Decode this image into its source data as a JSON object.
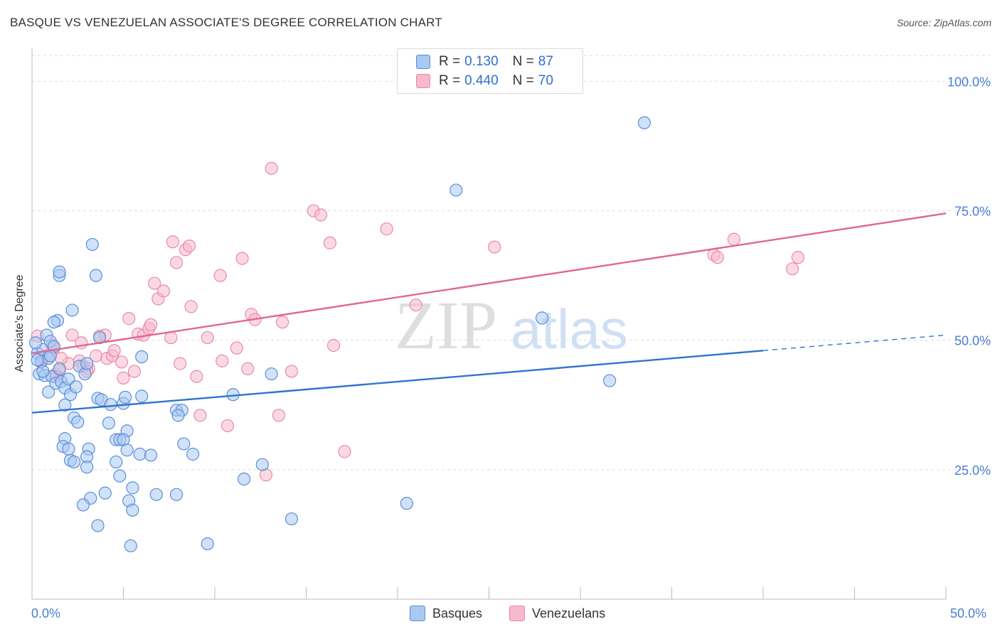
{
  "title": "BASQUE VS VENEZUELAN ASSOCIATE'S DEGREE CORRELATION CHART",
  "source": "Source: ZipAtlas.com",
  "watermark": {
    "zip": "ZIP",
    "atlas": "atlas"
  },
  "colors": {
    "basque_fill": "#a9c8f2",
    "basque_stroke": "#5b8fd8",
    "basque_line": "#2f74d0",
    "venez_fill": "#f7b9cc",
    "venez_stroke": "#e98aa7",
    "venez_line": "#e0678e",
    "tick_text": "#4a7fd4",
    "grid": "#dddddd"
  },
  "legend": {
    "rows": [
      {
        "r_label": "R =",
        "r_value": "0.130",
        "n_label": "N =",
        "n_value": "87"
      },
      {
        "r_label": "R =",
        "r_value": "0.440",
        "n_label": "N =",
        "n_value": "70"
      }
    ]
  },
  "bottom_legend": {
    "basques": "Basques",
    "venezuelans": "Venezuelans"
  },
  "chart_data": {
    "type": "scatter",
    "title": "BASQUE VS VENEZUELAN ASSOCIATE'S DEGREE CORRELATION CHART",
    "xlabel": "",
    "ylabel": "Associate's Degree",
    "xlim": [
      0,
      50
    ],
    "ylim": [
      0,
      105
    ],
    "x_tick_labels": [
      "0.0%",
      "50.0%"
    ],
    "y_ticks": [
      25,
      50,
      75,
      100
    ],
    "y_tick_labels": [
      "25.0%",
      "50.0%",
      "75.0%",
      "100.0%"
    ],
    "grid": true,
    "series": [
      {
        "name": "Basques",
        "r": 0.13,
        "n": 87,
        "trend": {
          "x": [
            0,
            40
          ],
          "y": [
            36.0,
            48.0
          ],
          "dashed_to": [
            50,
            51.0
          ]
        },
        "points": [
          [
            0.3,
            47.5
          ],
          [
            0.5,
            45.8
          ],
          [
            0.6,
            48.2
          ],
          [
            0.2,
            49.5
          ],
          [
            0.8,
            51.0
          ],
          [
            1.0,
            49.8
          ],
          [
            0.9,
            46.5
          ],
          [
            1.2,
            48.8
          ],
          [
            0.4,
            43.5
          ],
          [
            0.7,
            43.2
          ],
          [
            1.1,
            43.0
          ],
          [
            1.3,
            41.7
          ],
          [
            1.5,
            44.5
          ],
          [
            1.4,
            53.8
          ],
          [
            1.2,
            53.5
          ],
          [
            1.6,
            42.0
          ],
          [
            1.8,
            40.8
          ],
          [
            2.0,
            42.5
          ],
          [
            2.1,
            39.5
          ],
          [
            2.4,
            41.0
          ],
          [
            0.9,
            40.0
          ],
          [
            1.8,
            37.5
          ],
          [
            2.3,
            35.0
          ],
          [
            2.5,
            34.2
          ],
          [
            2.6,
            45.0
          ],
          [
            2.9,
            43.5
          ],
          [
            3.6,
            38.8
          ],
          [
            3.8,
            38.5
          ],
          [
            3.7,
            50.5
          ],
          [
            4.3,
            37.6
          ],
          [
            5.0,
            37.8
          ],
          [
            5.1,
            39.0
          ],
          [
            4.2,
            34.0
          ],
          [
            5.2,
            32.5
          ],
          [
            1.8,
            31.0
          ],
          [
            1.7,
            29.5
          ],
          [
            3.1,
            29.0
          ],
          [
            3.0,
            27.5
          ],
          [
            2.1,
            26.8
          ],
          [
            2.3,
            26.5
          ],
          [
            3.0,
            25.5
          ],
          [
            3.5,
            62.5
          ],
          [
            1.5,
            62.5
          ],
          [
            1.5,
            63.2
          ],
          [
            2.2,
            55.8
          ],
          [
            3.3,
            68.5
          ],
          [
            4.6,
            30.8
          ],
          [
            4.8,
            30.8
          ],
          [
            5.0,
            30.8
          ],
          [
            5.2,
            28.8
          ],
          [
            5.9,
            28.0
          ],
          [
            6.5,
            27.8
          ],
          [
            4.6,
            26.5
          ],
          [
            4.8,
            23.8
          ],
          [
            5.5,
            21.5
          ],
          [
            6.8,
            20.2
          ],
          [
            7.9,
            20.2
          ],
          [
            4.0,
            20.5
          ],
          [
            3.2,
            19.5
          ],
          [
            2.8,
            18.2
          ],
          [
            5.3,
            19.0
          ],
          [
            5.5,
            17.2
          ],
          [
            3.6,
            14.2
          ],
          [
            5.4,
            10.3
          ],
          [
            6.0,
            46.8
          ],
          [
            7.9,
            36.5
          ],
          [
            8.2,
            36.5
          ],
          [
            8.0,
            35.5
          ],
          [
            8.3,
            30.0
          ],
          [
            8.8,
            28.0
          ],
          [
            11.0,
            39.5
          ],
          [
            11.6,
            23.2
          ],
          [
            12.6,
            26.0
          ],
          [
            13.1,
            43.5
          ],
          [
            14.2,
            15.5
          ],
          [
            9.6,
            10.7
          ],
          [
            20.5,
            18.5
          ],
          [
            23.2,
            79.0
          ],
          [
            27.9,
            54.3
          ],
          [
            31.6,
            42.2
          ],
          [
            33.5,
            92.0
          ],
          [
            0.3,
            46.2
          ],
          [
            0.6,
            44.0
          ],
          [
            2.0,
            29.0
          ],
          [
            6.0,
            39.2
          ],
          [
            3.0,
            45.5
          ],
          [
            1.0,
            47.0
          ]
        ]
      },
      {
        "name": "Venezuelans",
        "r": 0.44,
        "n": 70,
        "trend": {
          "x": [
            0,
            50
          ],
          "y": [
            47.5,
            74.5
          ]
        },
        "points": [
          [
            0.3,
            50.8
          ],
          [
            0.6,
            46.5
          ],
          [
            0.8,
            47.0
          ],
          [
            1.1,
            49.0
          ],
          [
            1.2,
            48.5
          ],
          [
            1.3,
            43.5
          ],
          [
            1.5,
            44.2
          ],
          [
            2.0,
            45.5
          ],
          [
            2.2,
            51.0
          ],
          [
            2.6,
            46.0
          ],
          [
            2.7,
            49.5
          ],
          [
            2.8,
            45.0
          ],
          [
            3.1,
            44.5
          ],
          [
            3.5,
            47.0
          ],
          [
            3.7,
            50.8
          ],
          [
            4.1,
            46.5
          ],
          [
            4.4,
            47.0
          ],
          [
            4.5,
            48.0
          ],
          [
            4.9,
            45.8
          ],
          [
            5.0,
            42.7
          ],
          [
            5.3,
            54.2
          ],
          [
            5.6,
            44.0
          ],
          [
            5.8,
            51.2
          ],
          [
            6.1,
            51.0
          ],
          [
            6.4,
            52.3
          ],
          [
            6.5,
            53.0
          ],
          [
            6.7,
            61.0
          ],
          [
            6.9,
            58.0
          ],
          [
            7.2,
            59.5
          ],
          [
            7.6,
            50.5
          ],
          [
            7.7,
            69.0
          ],
          [
            7.9,
            65.0
          ],
          [
            8.1,
            45.5
          ],
          [
            8.4,
            67.5
          ],
          [
            8.6,
            68.2
          ],
          [
            8.7,
            56.5
          ],
          [
            9.0,
            43.0
          ],
          [
            9.2,
            35.5
          ],
          [
            9.6,
            50.5
          ],
          [
            10.3,
            62.5
          ],
          [
            10.4,
            46.0
          ],
          [
            10.7,
            33.5
          ],
          [
            11.2,
            48.5
          ],
          [
            11.5,
            65.8
          ],
          [
            11.8,
            44.5
          ],
          [
            12.0,
            55.0
          ],
          [
            12.2,
            54.0
          ],
          [
            12.8,
            24.0
          ],
          [
            13.5,
            35.5
          ],
          [
            13.7,
            53.5
          ],
          [
            14.2,
            44.0
          ],
          [
            15.4,
            75.0
          ],
          [
            15.8,
            74.2
          ],
          [
            16.3,
            68.8
          ],
          [
            16.5,
            49.0
          ],
          [
            17.1,
            28.5
          ],
          [
            19.4,
            71.5
          ],
          [
            21.0,
            56.8
          ],
          [
            25.3,
            68.0
          ],
          [
            37.3,
            66.5
          ],
          [
            37.5,
            66.0
          ],
          [
            38.4,
            69.5
          ],
          [
            41.6,
            63.8
          ],
          [
            41.9,
            66.0
          ],
          [
            13.1,
            83.2
          ],
          [
            4.0,
            51.0
          ],
          [
            1.3,
            43.0
          ],
          [
            0.5,
            46.0
          ],
          [
            3.0,
            44.0
          ],
          [
            1.6,
            46.5
          ]
        ]
      }
    ]
  }
}
